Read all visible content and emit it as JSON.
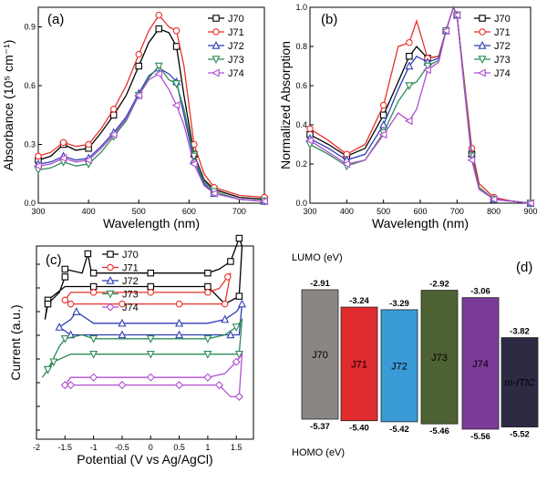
{
  "chart_data": [
    {
      "panel": "(a)",
      "type": "line",
      "xlabel": "Wavelength (nm)",
      "ylabel": "Absorbance (10⁵ cm⁻¹)",
      "xlim": [
        300,
        750
      ],
      "ylim": [
        0,
        1.0
      ],
      "xticks": [
        300,
        400,
        500,
        600,
        700
      ],
      "yticks": [
        0.0,
        0.3,
        0.6,
        0.9
      ],
      "legend_position": "top-right",
      "series": [
        {
          "name": "J70",
          "color": "#000000",
          "marker": "square",
          "x": [
            300,
            325,
            350,
            375,
            400,
            425,
            450,
            475,
            500,
            520,
            540,
            560,
            575,
            590,
            610,
            630,
            650,
            700,
            750
          ],
          "y": [
            0.22,
            0.24,
            0.3,
            0.27,
            0.28,
            0.36,
            0.45,
            0.55,
            0.7,
            0.82,
            0.89,
            0.87,
            0.8,
            0.55,
            0.25,
            0.12,
            0.07,
            0.03,
            0.02
          ]
        },
        {
          "name": "J71",
          "color": "#e8312a",
          "marker": "circle",
          "x": [
            300,
            325,
            350,
            375,
            400,
            425,
            450,
            475,
            500,
            520,
            540,
            560,
            575,
            590,
            610,
            630,
            650,
            700,
            750
          ],
          "y": [
            0.24,
            0.26,
            0.31,
            0.29,
            0.3,
            0.38,
            0.48,
            0.6,
            0.76,
            0.88,
            0.96,
            0.9,
            0.88,
            0.7,
            0.3,
            0.15,
            0.08,
            0.04,
            0.03
          ]
        },
        {
          "name": "J72",
          "color": "#2f3fb5",
          "marker": "triangle-up",
          "x": [
            300,
            325,
            350,
            375,
            400,
            425,
            450,
            475,
            500,
            520,
            540,
            560,
            575,
            590,
            610,
            630,
            650,
            700,
            750
          ],
          "y": [
            0.2,
            0.21,
            0.24,
            0.22,
            0.23,
            0.29,
            0.36,
            0.44,
            0.56,
            0.65,
            0.69,
            0.66,
            0.62,
            0.45,
            0.22,
            0.1,
            0.05,
            0.02,
            0.01
          ]
        },
        {
          "name": "J73",
          "color": "#2e8b57",
          "marker": "triangle-down",
          "x": [
            300,
            325,
            350,
            375,
            400,
            425,
            450,
            475,
            500,
            520,
            540,
            560,
            575,
            590,
            610,
            630,
            650,
            700,
            750
          ],
          "y": [
            0.17,
            0.18,
            0.21,
            0.19,
            0.2,
            0.26,
            0.34,
            0.42,
            0.55,
            0.64,
            0.7,
            0.63,
            0.61,
            0.48,
            0.24,
            0.11,
            0.06,
            0.02,
            0.01
          ]
        },
        {
          "name": "J74",
          "color": "#b04fd0",
          "marker": "triangle-left",
          "x": [
            300,
            325,
            350,
            375,
            400,
            425,
            450,
            475,
            500,
            520,
            540,
            560,
            575,
            590,
            610,
            630,
            650,
            700,
            750
          ],
          "y": [
            0.19,
            0.2,
            0.23,
            0.21,
            0.22,
            0.28,
            0.35,
            0.43,
            0.55,
            0.63,
            0.66,
            0.58,
            0.5,
            0.4,
            0.2,
            0.09,
            0.05,
            0.02,
            0.01
          ]
        }
      ]
    },
    {
      "panel": "(b)",
      "type": "line",
      "xlabel": "Wavelength (nm)",
      "ylabel": "Normalized Absorption",
      "xlim": [
        300,
        900
      ],
      "ylim": [
        0,
        1.0
      ],
      "xticks": [
        300,
        400,
        500,
        600,
        700,
        800,
        900
      ],
      "yticks": [
        0.0,
        0.2,
        0.4,
        0.6,
        0.8,
        1.0
      ],
      "legend_position": "top-right",
      "series": [
        {
          "name": "J70",
          "color": "#000000",
          "marker": "square",
          "x": [
            300,
            350,
            400,
            450,
            500,
            540,
            570,
            590,
            620,
            650,
            670,
            690,
            700,
            720,
            740,
            760,
            800,
            850,
            900
          ],
          "y": [
            0.35,
            0.3,
            0.24,
            0.28,
            0.45,
            0.62,
            0.75,
            0.8,
            0.74,
            0.75,
            0.88,
            1.0,
            0.96,
            0.6,
            0.25,
            0.08,
            0.02,
            0.01,
            0.0
          ]
        },
        {
          "name": "J71",
          "color": "#e8312a",
          "marker": "circle",
          "x": [
            300,
            350,
            400,
            450,
            500,
            540,
            570,
            590,
            620,
            650,
            670,
            690,
            700,
            720,
            740,
            760,
            800,
            850,
            900
          ],
          "y": [
            0.38,
            0.32,
            0.25,
            0.3,
            0.5,
            0.8,
            0.82,
            0.93,
            0.74,
            0.75,
            0.88,
            1.0,
            0.96,
            0.62,
            0.28,
            0.1,
            0.03,
            0.01,
            0.0
          ]
        },
        {
          "name": "J72",
          "color": "#2f3fb5",
          "marker": "triangle-up",
          "x": [
            300,
            350,
            400,
            450,
            500,
            540,
            570,
            590,
            620,
            650,
            670,
            690,
            700,
            720,
            740,
            760,
            800,
            850,
            900
          ],
          "y": [
            0.33,
            0.28,
            0.22,
            0.25,
            0.4,
            0.58,
            0.7,
            0.75,
            0.72,
            0.74,
            0.88,
            1.0,
            0.96,
            0.6,
            0.25,
            0.08,
            0.02,
            0.01,
            0.0
          ]
        },
        {
          "name": "J73",
          "color": "#2e8b57",
          "marker": "triangle-down",
          "x": [
            300,
            350,
            400,
            450,
            500,
            540,
            570,
            590,
            620,
            650,
            670,
            690,
            700,
            720,
            740,
            760,
            800,
            850,
            900
          ],
          "y": [
            0.3,
            0.25,
            0.19,
            0.22,
            0.36,
            0.52,
            0.6,
            0.62,
            0.7,
            0.73,
            0.88,
            1.0,
            0.96,
            0.6,
            0.24,
            0.08,
            0.02,
            0.01,
            0.0
          ]
        },
        {
          "name": "J74",
          "color": "#b04fd0",
          "marker": "triangle-left",
          "x": [
            300,
            350,
            400,
            450,
            500,
            540,
            570,
            590,
            620,
            650,
            670,
            690,
            700,
            720,
            740,
            760,
            800,
            850,
            900
          ],
          "y": [
            0.32,
            0.26,
            0.2,
            0.22,
            0.35,
            0.46,
            0.42,
            0.48,
            0.68,
            0.72,
            0.88,
            1.0,
            0.96,
            0.58,
            0.22,
            0.07,
            0.02,
            0.01,
            0.0
          ]
        }
      ]
    },
    {
      "panel": "(c)",
      "type": "line",
      "xlabel": "Potential (V vs Ag/AgCl)",
      "ylabel": "Current (a.u.)",
      "xlim": [
        -2.0,
        1.8
      ],
      "ylim": [
        0,
        100
      ],
      "xticks": [
        -2.0,
        -1.5,
        -1.0,
        -0.5,
        0.0,
        0.5,
        1.0,
        1.5
      ],
      "legend_position": "top-center",
      "series": [
        {
          "name": "J70",
          "color": "#000000",
          "marker": "square",
          "x": [
            -1.5,
            -1.2,
            -1.1,
            -1.05,
            -1.0,
            -0.5,
            0.0,
            0.5,
            1.0,
            1.2,
            1.4,
            1.5,
            1.55,
            1.6,
            1.55,
            1.3,
            1.0,
            0.5,
            0.0,
            -0.5,
            -1.0,
            -1.5,
            -1.8,
            -1.85,
            -1.8,
            -1.6,
            -1.5
          ],
          "y": [
            88,
            86,
            96,
            88,
            86,
            86,
            86,
            86,
            86,
            88,
            92,
            100,
            104,
            100,
            74,
            70,
            79,
            79,
            79,
            79,
            79,
            79,
            72,
            62,
            70,
            76,
            84
          ]
        },
        {
          "name": "J71",
          "color": "#e8312a",
          "marker": "circle",
          "x": [
            -1.5,
            -1.4,
            -1.0,
            -0.5,
            0.0,
            0.5,
            1.0,
            1.2,
            1.35,
            1.4,
            1.3,
            1.0,
            0.5,
            0.0,
            -0.5,
            -1.0,
            -1.4,
            -1.5
          ],
          "y": [
            72,
            76,
            76,
            76,
            76,
            76,
            76,
            78,
            84,
            86,
            70,
            70,
            70,
            70,
            70,
            70,
            70,
            72
          ]
        },
        {
          "name": "J72",
          "color": "#2f3fb5",
          "marker": "triangle-up",
          "x": [
            -1.6,
            -1.4,
            -1.3,
            -1.0,
            -0.5,
            0.0,
            0.5,
            1.0,
            1.3,
            1.5,
            1.6,
            1.55,
            1.4,
            1.0,
            0.5,
            0.0,
            -0.5,
            -1.0,
            -1.4,
            -1.6
          ],
          "y": [
            58,
            62,
            66,
            60,
            60,
            60,
            60,
            60,
            62,
            66,
            70,
            54,
            54,
            54,
            54,
            54,
            54,
            54,
            54,
            58
          ]
        },
        {
          "name": "J73",
          "color": "#2e8b57",
          "marker": "triangle-down",
          "x": [
            -1.8,
            -1.6,
            -1.5,
            -1.2,
            -1.0,
            -0.5,
            0.0,
            0.5,
            1.0,
            1.3,
            1.5,
            1.6,
            1.55,
            1.4,
            1.0,
            0.5,
            0.0,
            -0.5,
            -1.0,
            -1.4,
            -1.7,
            -1.9,
            -1.8
          ],
          "y": [
            36,
            48,
            52,
            54,
            52,
            52,
            52,
            52,
            52,
            54,
            58,
            62,
            44,
            44,
            44,
            44,
            44,
            44,
            44,
            44,
            40,
            32,
            36
          ]
        },
        {
          "name": "J74",
          "color": "#b04fd0",
          "marker": "diamond",
          "x": [
            -1.5,
            -1.4,
            -1.0,
            -0.5,
            0.0,
            0.5,
            1.0,
            1.3,
            1.5,
            1.6,
            1.55,
            1.4,
            1.2,
            1.0,
            0.5,
            0.0,
            -0.5,
            -1.0,
            -1.4,
            -1.5
          ],
          "y": [
            28,
            32,
            32,
            32,
            32,
            32,
            32,
            34,
            40,
            44,
            22,
            22,
            28,
            28,
            28,
            28,
            28,
            28,
            28,
            28
          ]
        }
      ]
    },
    {
      "panel": "(d)",
      "type": "bar",
      "ylabel_top": "LUMO (eV)",
      "ylabel_bottom": "HOMO (eV)",
      "ylim": [
        -5.7,
        -2.75
      ],
      "bars": [
        {
          "name": "J70",
          "lumo": "-2.91",
          "homo": "-5.37",
          "color": "#8a8683"
        },
        {
          "name": "J71",
          "lumo": "-3.24",
          "homo": "-5.40",
          "color": "#e02b2f"
        },
        {
          "name": "J72",
          "lumo": "-3.29",
          "homo": "-5.42",
          "color": "#3a9ad6"
        },
        {
          "name": "J73",
          "lumo": "-2.92",
          "homo": "-5.46",
          "color": "#4e6132"
        },
        {
          "name": "J74",
          "lumo": "-3.06",
          "homo": "-5.56",
          "color": "#7b3a98"
        },
        {
          "name": "m-ITIC",
          "lumo": "-3.82",
          "homo": "-5.52",
          "color": "#2d2a44"
        }
      ]
    }
  ]
}
